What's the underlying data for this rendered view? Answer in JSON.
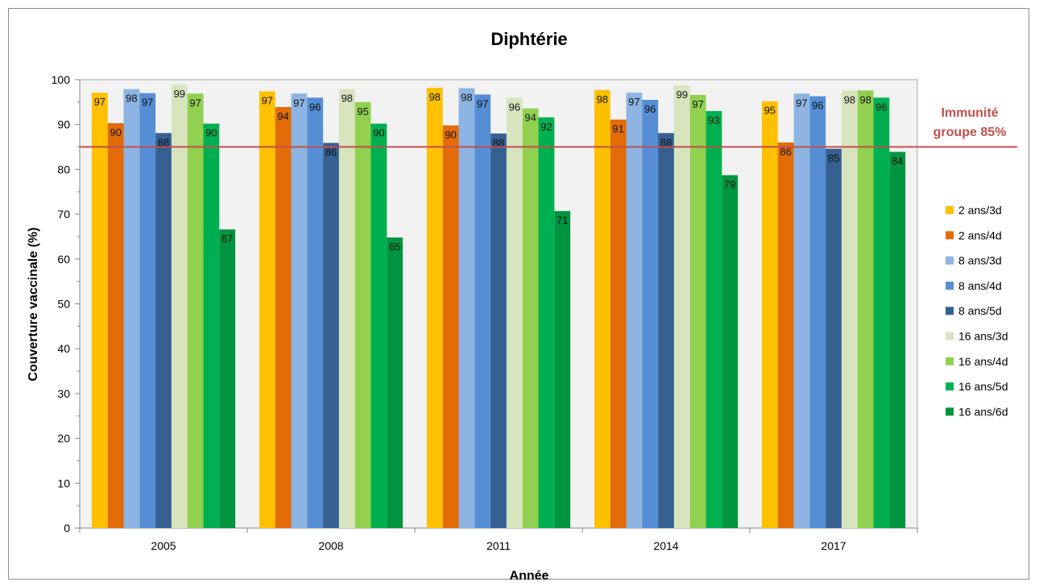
{
  "chart_data": {
    "type": "bar",
    "title": "Diphtérie",
    "xlabel": "Année",
    "ylabel": "Couverture vaccinale (%)",
    "ylim": [
      0,
      100
    ],
    "yticks": [
      0,
      10,
      20,
      30,
      40,
      50,
      60,
      70,
      80,
      90,
      100
    ],
    "grid": false,
    "legend_position": "right",
    "categories": [
      "2005",
      "2008",
      "2011",
      "2014",
      "2017"
    ],
    "series": [
      {
        "name": "2 ans/3d",
        "color": "#FFC000",
        "values": [
          97.1,
          97.4,
          98.2,
          97.7,
          95.2
        ],
        "labels": [
          "97",
          "97",
          "98",
          "98",
          "95"
        ]
      },
      {
        "name": "2 ans/4d",
        "color": "#E36C09",
        "values": [
          90.3,
          93.9,
          89.8,
          91.1,
          86.0
        ],
        "labels": [
          "90",
          "94",
          "90",
          "91",
          "86"
        ]
      },
      {
        "name": "8 ans/3d",
        "color": "#8DB4E2",
        "values": [
          97.9,
          96.9,
          98.1,
          97.1,
          96.9
        ],
        "labels": [
          "98",
          "97",
          "98",
          "97",
          "97"
        ]
      },
      {
        "name": "8 ans/4d",
        "color": "#558ED5",
        "values": [
          97.0,
          96.0,
          96.7,
          95.5,
          96.3
        ],
        "labels": [
          "97",
          "96",
          "97",
          "96",
          "96"
        ]
      },
      {
        "name": "8 ans/5d",
        "color": "#366092",
        "values": [
          88.1,
          85.9,
          88.0,
          88.1,
          84.6
        ],
        "labels": [
          "88",
          "86",
          "88",
          "88",
          "85"
        ]
      },
      {
        "name": "16 ans/3d",
        "color": "#D7E4BD",
        "values": [
          98.9,
          97.9,
          96.0,
          98.7,
          97.6
        ],
        "labels": [
          "99",
          "98",
          "96",
          "99",
          "98"
        ]
      },
      {
        "name": "16 ans/4d",
        "color": "#92D050",
        "values": [
          96.9,
          95.0,
          93.6,
          96.6,
          97.6
        ],
        "labels": [
          "97",
          "95",
          "94",
          "97",
          "98"
        ]
      },
      {
        "name": "16 ans/5d",
        "color": "#00B050",
        "values": [
          90.2,
          90.2,
          91.6,
          93.0,
          96.0
        ],
        "labels": [
          "90",
          "90",
          "92",
          "93",
          "96"
        ]
      },
      {
        "name": "16 ans/6d",
        "color": "#00953E",
        "values": [
          66.6,
          64.8,
          70.7,
          78.7,
          83.9
        ],
        "labels": [
          "67",
          "65",
          "71",
          "79",
          "84"
        ]
      }
    ],
    "reference_line": {
      "value": 85,
      "label_lines": [
        "Immunité",
        "groupe 85%"
      ],
      "color": "#C0504D"
    }
  }
}
